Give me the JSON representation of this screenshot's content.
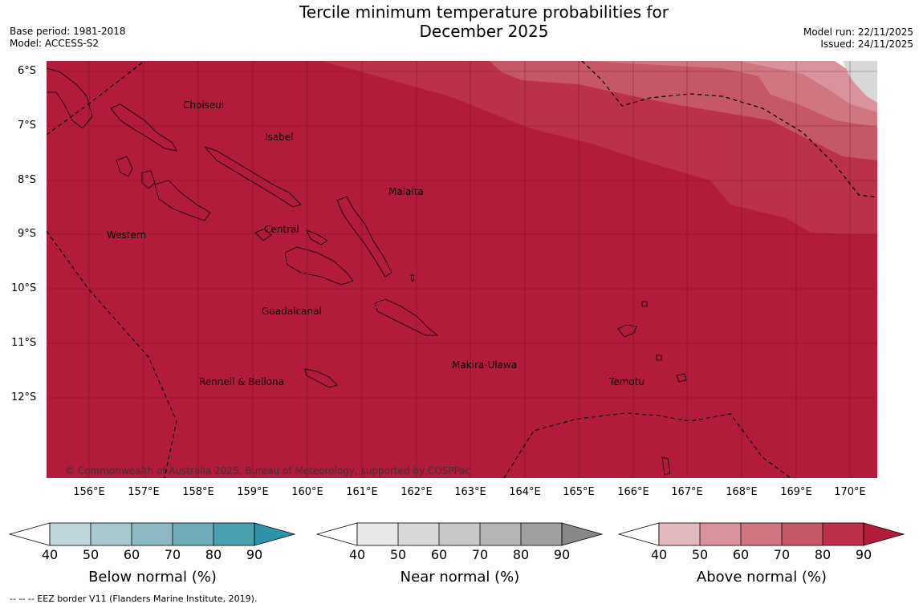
{
  "title_line1": "Tercile minimum temperature probabilities for",
  "title_line2": "December 2025",
  "base_period": "Base period: 1981-2018",
  "model": "Model: ACCESS-S2",
  "model_run": "Model run: 22/11/2025",
  "issued": "Issued: 24/11/2025",
  "lat_labels": [
    "6°S",
    "7°S",
    "8°S",
    "9°S",
    "10°S",
    "11°S",
    "12°S"
  ],
  "lon_labels": [
    "156°E",
    "157°E",
    "158°E",
    "159°E",
    "160°E",
    "161°E",
    "162°E",
    "163°E",
    "164°E",
    "165°E",
    "166°E",
    "167°E",
    "168°E",
    "169°E",
    "170°E"
  ],
  "regions": {
    "choiseul": "Choiseul",
    "isabel": "Isabel",
    "malaita": "Malaita",
    "western": "Western",
    "central": "Central",
    "guadalcanal": "Guadalcanal",
    "makira": "Makira-Ulawa",
    "rennell": "Rennell & Bellona",
    "temotu": "Temotu"
  },
  "copyright": "© Commonwealth of Australia 2025, Bureau of Meteorology, supported by COSPPac",
  "legends": [
    {
      "title": "Below normal (%)",
      "ticks": [
        "40",
        "50",
        "60",
        "70",
        "80",
        "90"
      ],
      "colors": [
        "#bfd6dc",
        "#a7c8cf",
        "#8db9c4",
        "#70adbb",
        "#4aa0b0",
        "#2e93a8"
      ]
    },
    {
      "title": "Near normal (%)",
      "ticks": [
        "40",
        "50",
        "60",
        "70",
        "80",
        "90"
      ],
      "colors": [
        "#e8e8e8",
        "#d8d8d8",
        "#c8c8c8",
        "#b5b5b5",
        "#a0a0a0",
        "#888888"
      ]
    },
    {
      "title": "Above normal (%)",
      "ticks": [
        "40",
        "50",
        "60",
        "70",
        "80",
        "90"
      ],
      "colors": [
        "#e4b8bf",
        "#da939d",
        "#d07680",
        "#c65766",
        "#bb3149",
        "#b31b3a"
      ]
    }
  ],
  "footnote": "--  --  -- EEZ border V11 (Flanders Marine Institute, 2019).",
  "colors": {
    "above_90": "#b31b3a",
    "above_80": "#bb3149",
    "above_70": "#c65766",
    "above_60": "#d07680",
    "above_50": "#da939d",
    "near_gray": "#d8d8d8"
  }
}
